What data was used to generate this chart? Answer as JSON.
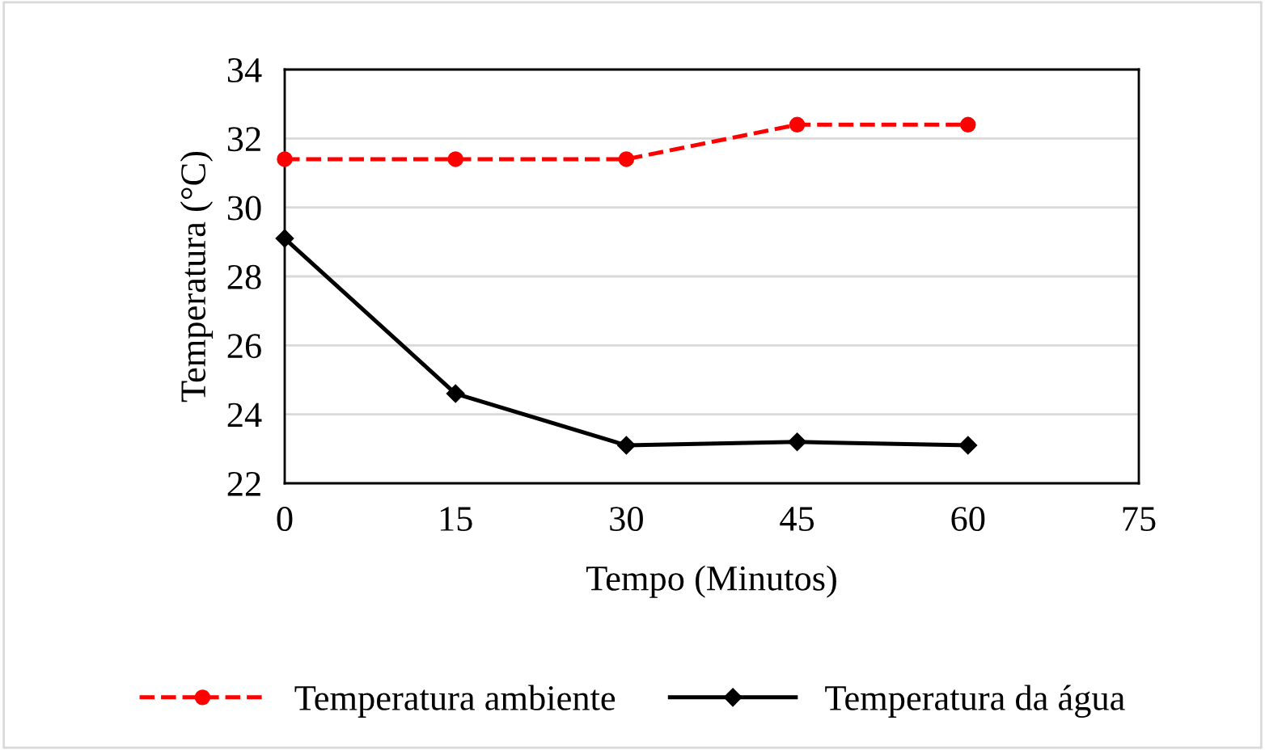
{
  "chart_data": {
    "type": "line",
    "xlabel": "Tempo (Minutos)",
    "ylabel": "Temperatura (°C)",
    "x": [
      0,
      15,
      30,
      45,
      60
    ],
    "series": [
      {
        "name": "Temperatura ambiente",
        "color": "#ff0000",
        "values": [
          31.4,
          31.4,
          31.4,
          32.4,
          32.4
        ],
        "line_style": "dashed",
        "marker": "circle"
      },
      {
        "name": "Temperatura da água",
        "color": "#000000",
        "values": [
          29.1,
          24.6,
          23.1,
          23.2,
          23.1
        ],
        "line_style": "solid",
        "marker": "diamond"
      }
    ],
    "xlim": [
      0,
      75
    ],
    "xticks": [
      0,
      15,
      30,
      45,
      60,
      75
    ],
    "ylim": [
      22,
      34
    ],
    "yticks": [
      22,
      24,
      26,
      28,
      30,
      32,
      34
    ],
    "grid": "y",
    "legend": "bottom"
  }
}
